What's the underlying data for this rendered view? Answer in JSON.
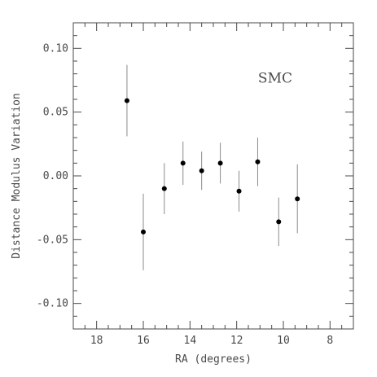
{
  "chart_data": {
    "type": "scatter",
    "title": "",
    "xlabel": "RA (degrees)",
    "ylabel": "Distance Modulus Variation",
    "xlim": [
      19,
      7
    ],
    "ylim": [
      -0.12,
      0.12
    ],
    "x_ticks": [
      {
        "value": 18,
        "label": "18"
      },
      {
        "value": 16,
        "label": "16"
      },
      {
        "value": 14,
        "label": "14"
      },
      {
        "value": 12,
        "label": "12"
      },
      {
        "value": 10,
        "label": "10"
      },
      {
        "value": 8,
        "label": "8"
      }
    ],
    "y_ticks": [
      {
        "value": 0.1,
        "label": "0.10"
      },
      {
        "value": 0.05,
        "label": "0.05"
      },
      {
        "value": 0.0,
        "label": "0.00"
      },
      {
        "value": -0.05,
        "label": "-0.05"
      },
      {
        "value": -0.1,
        "label": "-0.10"
      }
    ],
    "x_minor_step": 0.5,
    "y_minor_step": 0.01,
    "grid": false,
    "annotation": "SMC",
    "points": [
      {
        "x": 16.7,
        "y": 0.059,
        "err": 0.028
      },
      {
        "x": 16.0,
        "y": -0.044,
        "err": 0.03
      },
      {
        "x": 15.1,
        "y": -0.01,
        "err": 0.02
      },
      {
        "x": 14.3,
        "y": 0.01,
        "err": 0.017
      },
      {
        "x": 13.5,
        "y": 0.004,
        "err": 0.015
      },
      {
        "x": 12.7,
        "y": 0.01,
        "err": 0.016
      },
      {
        "x": 11.9,
        "y": -0.012,
        "err": 0.016
      },
      {
        "x": 11.1,
        "y": 0.011,
        "err": 0.019
      },
      {
        "x": 10.2,
        "y": -0.036,
        "err": 0.019
      },
      {
        "x": 9.4,
        "y": -0.018,
        "err": 0.027
      }
    ],
    "colors": {
      "points": "#000000",
      "error_bars": "#8a8a8a",
      "axes": "#4a4a4a",
      "text": "#4a4a4a",
      "background": "#ffffff"
    }
  }
}
